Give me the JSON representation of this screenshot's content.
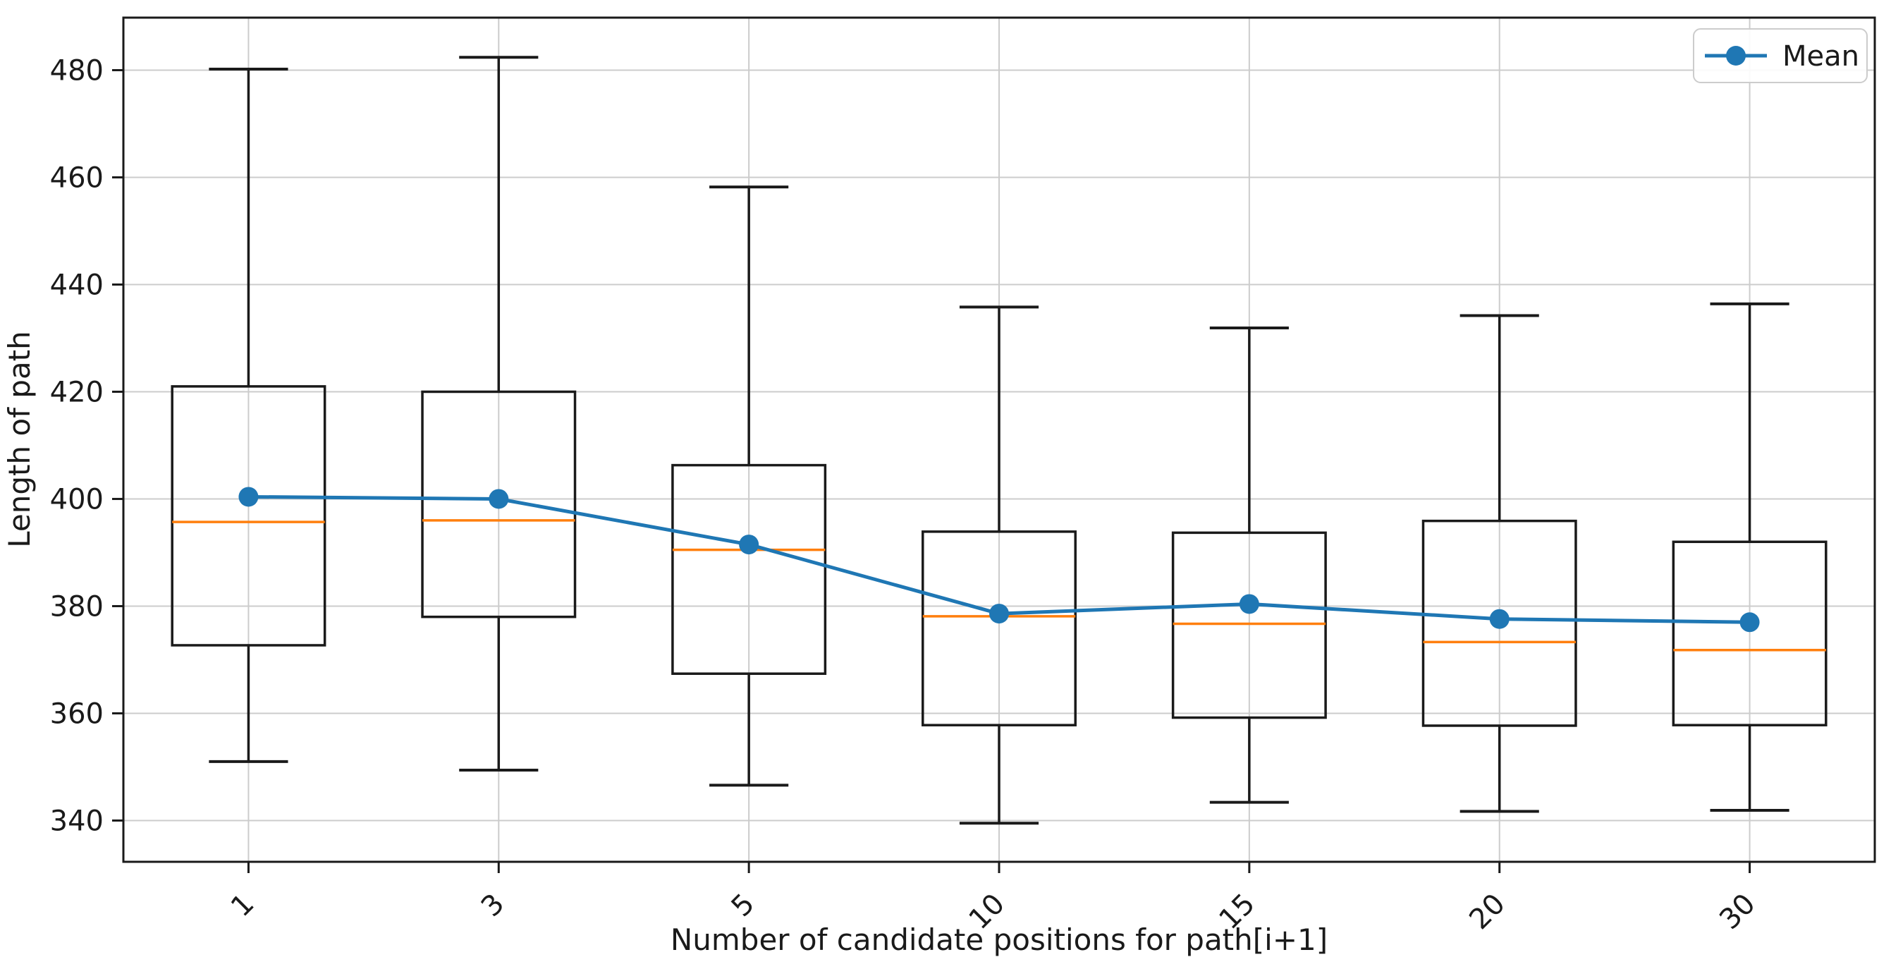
{
  "chart_data": {
    "type": "boxplot",
    "title": "",
    "xlabel": "Number of candidate positions for path[i+1]",
    "ylabel": "Length of path",
    "categories": [
      "1",
      "3",
      "5",
      "10",
      "15",
      "20",
      "30"
    ],
    "y_ticks": [
      340,
      360,
      380,
      400,
      420,
      440,
      460,
      480
    ],
    "ylim": [
      332.3,
      489.8
    ],
    "grid": "both",
    "x_tick_rotation": 45,
    "legend": {
      "position": "upper right",
      "entries": [
        {
          "label": "Mean",
          "color": "#1f77b4",
          "marker": "circle"
        }
      ]
    },
    "series": {
      "boxes": [
        {
          "category": "1",
          "whisker_low": 351.0,
          "q1": 372.7,
          "median": 395.7,
          "mean": 400.4,
          "q3": 421.0,
          "whisker_high": 480.2
        },
        {
          "category": "3",
          "whisker_low": 349.4,
          "q1": 378.0,
          "median": 396.0,
          "mean": 400.0,
          "q3": 420.0,
          "whisker_high": 482.4
        },
        {
          "category": "5",
          "whisker_low": 346.6,
          "q1": 367.4,
          "median": 390.5,
          "mean": 391.5,
          "q3": 406.3,
          "whisker_high": 458.2
        },
        {
          "category": "10",
          "whisker_low": 339.5,
          "q1": 357.8,
          "median": 378.1,
          "mean": 378.6,
          "q3": 393.9,
          "whisker_high": 435.8
        },
        {
          "category": "15",
          "whisker_low": 343.4,
          "q1": 359.2,
          "median": 376.7,
          "mean": 380.4,
          "q3": 393.7,
          "whisker_high": 431.9
        },
        {
          "category": "20",
          "whisker_low": 341.7,
          "q1": 357.7,
          "median": 373.3,
          "mean": 377.6,
          "q3": 395.9,
          "whisker_high": 434.2
        },
        {
          "category": "30",
          "whisker_low": 341.9,
          "q1": 357.8,
          "median": 371.8,
          "mean": 377.0,
          "q3": 392.0,
          "whisker_high": 436.4
        }
      ],
      "mean_line": {
        "name": "Mean",
        "values": [
          400.4,
          400.0,
          391.5,
          378.6,
          380.4,
          377.6,
          377.0
        ]
      }
    },
    "colors": {
      "mean": "#1f77b4",
      "median": "#ff7f0e",
      "box": "#1a1a1a",
      "grid": "#cccccc",
      "spine": "#1a1a1a",
      "background": "#ffffff"
    }
  }
}
